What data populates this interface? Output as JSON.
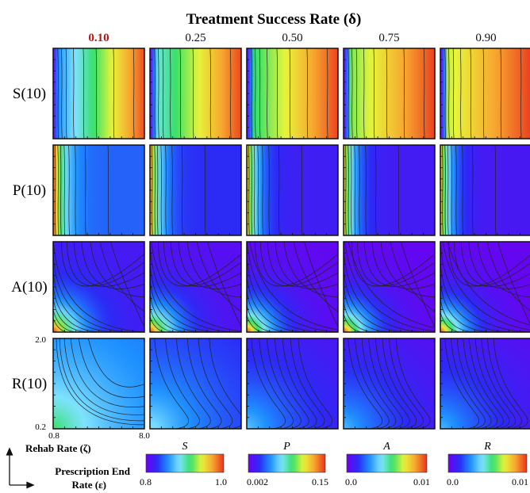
{
  "chart_data": {
    "type": "heatmap",
    "title": "Treatment Success Rate (δ)",
    "delta_values": [
      "0.10",
      "0.25",
      "0.50",
      "0.75",
      "0.90"
    ],
    "highlighted_delta": "0.10",
    "highlight_color": "#b01818",
    "row_labels": [
      "S(10)",
      "P(10)",
      "A(10)",
      "R(10)"
    ],
    "xlabel_line1": "Prescription End",
    "xlabel_line2": "Rate (ε)",
    "ylabel": "Rehab Rate (ζ)",
    "x_ticks": [
      "0.8",
      "8.0"
    ],
    "y_ticks": [
      "2.0",
      "0.2"
    ],
    "xlim": [
      0.8,
      8.0
    ],
    "ylim": [
      0.2,
      2.0
    ],
    "colorbars": [
      {
        "label": "S",
        "min": "0.8",
        "max": "1.0"
      },
      {
        "label": "P",
        "min": "0.002",
        "max": "0.15"
      },
      {
        "label": "A",
        "min": "0.0",
        "max": "0.01"
      },
      {
        "label": "R",
        "min": "0.0",
        "max": "0.01"
      }
    ],
    "colormap": [
      "#6e00f0",
      "#2b2bf5",
      "#1e90ff",
      "#7fe3ff",
      "#36e06a",
      "#e8f43a",
      "#f7a52e",
      "#e8321e"
    ],
    "panel_levels": {
      "S": [
        0.3,
        0.45,
        0.55,
        0.62,
        0.68
      ],
      "P": [
        0.22,
        0.14,
        0.1,
        0.09,
        0.08
      ],
      "A": [
        0.4,
        0.22,
        0.12,
        0.08,
        0.06
      ],
      "R": [
        0.22,
        0.1,
        0.03,
        0.01,
        0.005
      ]
    },
    "grid": false
  }
}
